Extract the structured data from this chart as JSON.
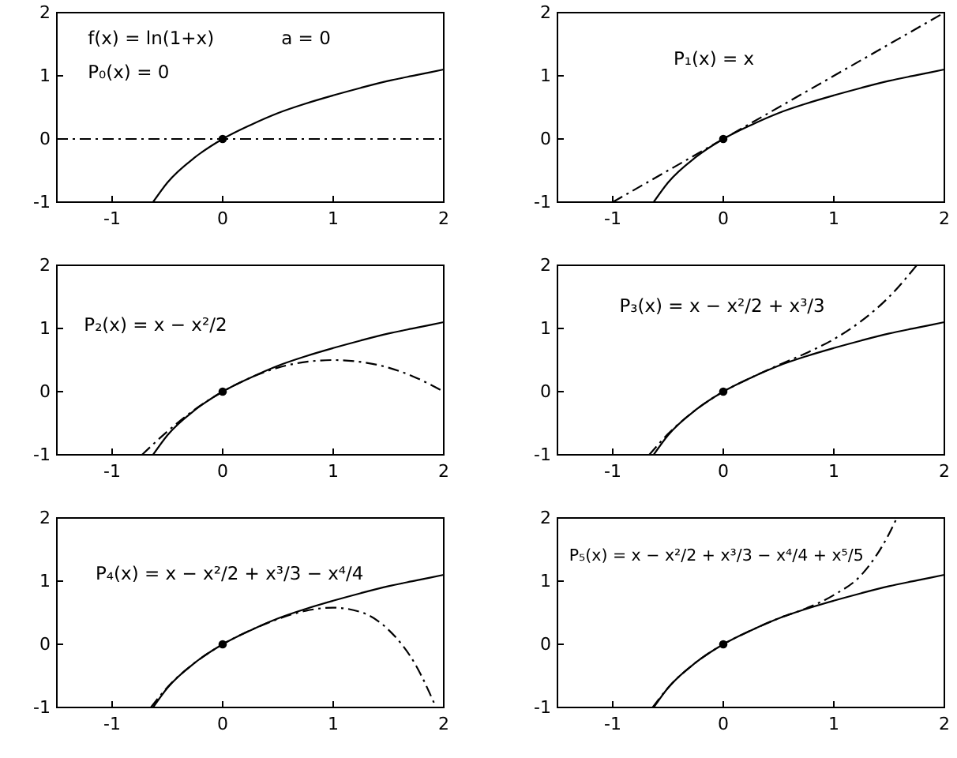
{
  "chart_data": [
    {
      "type": "line",
      "xlim": [
        -1.5,
        2
      ],
      "ylim": [
        -1,
        2
      ],
      "xticks": [
        -1,
        0,
        1,
        2
      ],
      "yticks": [
        -1,
        0,
        1,
        2
      ],
      "grid": false,
      "annotations": [
        "f(x) = ln(1+x)",
        "a = 0",
        "P₀(x) = 0"
      ],
      "series": [
        {
          "color": "#000000",
          "line_style": "solid",
          "x": [
            -0.63,
            -0.5,
            -0.25,
            0,
            0.25,
            0.5,
            0.75,
            1,
            1.25,
            1.5,
            1.75,
            2
          ],
          "values": [
            -1,
            -0.69,
            -0.29,
            0,
            0.22,
            0.41,
            0.56,
            0.69,
            0.81,
            0.92,
            1.01,
            1.1
          ]
        },
        {
          "color": "#000000",
          "line_style": "dashdot",
          "x": [
            -1.5,
            2
          ],
          "values": [
            0,
            0
          ]
        },
        {
          "type": "scatter",
          "marker": "circle",
          "color": "#000000",
          "x": [
            0
          ],
          "values": [
            0
          ]
        }
      ]
    },
    {
      "type": "line",
      "xlim": [
        -1.5,
        2
      ],
      "ylim": [
        -1,
        2
      ],
      "xticks": [
        -1,
        0,
        1,
        2
      ],
      "yticks": [
        -1,
        0,
        1,
        2
      ],
      "grid": false,
      "annotations": [
        "P₁(x) = x"
      ],
      "series": [
        {
          "color": "#000000",
          "line_style": "solid",
          "x": [
            -0.63,
            -0.5,
            -0.25,
            0,
            0.25,
            0.5,
            0.75,
            1,
            1.25,
            1.5,
            1.75,
            2
          ],
          "values": [
            -1,
            -0.69,
            -0.29,
            0,
            0.22,
            0.41,
            0.56,
            0.69,
            0.81,
            0.92,
            1.01,
            1.1
          ]
        },
        {
          "color": "#000000",
          "line_style": "dashdot",
          "x": [
            -1,
            2
          ],
          "values": [
            -1,
            2
          ]
        },
        {
          "type": "scatter",
          "marker": "circle",
          "color": "#000000",
          "x": [
            0
          ],
          "values": [
            0
          ]
        }
      ]
    },
    {
      "type": "line",
      "xlim": [
        -1.5,
        2
      ],
      "ylim": [
        -1,
        2
      ],
      "xticks": [
        -1,
        0,
        1,
        2
      ],
      "yticks": [
        -1,
        0,
        1,
        2
      ],
      "grid": false,
      "annotations": [
        "P₂(x) = x − x²/2"
      ],
      "series": [
        {
          "color": "#000000",
          "line_style": "solid",
          "x": [
            -0.63,
            -0.5,
            -0.25,
            0,
            0.25,
            0.5,
            0.75,
            1,
            1.25,
            1.5,
            1.75,
            2
          ],
          "values": [
            -1,
            -0.69,
            -0.29,
            0,
            0.22,
            0.41,
            0.56,
            0.69,
            0.81,
            0.92,
            1.01,
            1.1
          ]
        },
        {
          "color": "#000000",
          "line_style": "dashdot",
          "x": [
            -0.73,
            -0.5,
            -0.25,
            0,
            0.25,
            0.5,
            0.75,
            1,
            1.25,
            1.5,
            1.75,
            2
          ],
          "values": [
            -1,
            -0.63,
            -0.28,
            0,
            0.22,
            0.38,
            0.47,
            0.5,
            0.47,
            0.38,
            0.22,
            0
          ]
        },
        {
          "type": "scatter",
          "marker": "circle",
          "color": "#000000",
          "x": [
            0
          ],
          "values": [
            0
          ]
        }
      ]
    },
    {
      "type": "line",
      "xlim": [
        -1.5,
        2
      ],
      "ylim": [
        -1,
        2
      ],
      "xticks": [
        -1,
        0,
        1,
        2
      ],
      "yticks": [
        -1,
        0,
        1,
        2
      ],
      "grid": false,
      "annotations": [
        "P₃(x) = x − x²/2 + x³/3"
      ],
      "series": [
        {
          "color": "#000000",
          "line_style": "solid",
          "x": [
            -0.63,
            -0.5,
            -0.25,
            0,
            0.25,
            0.5,
            0.75,
            1,
            1.25,
            1.5,
            1.75,
            2
          ],
          "values": [
            -1,
            -0.69,
            -0.29,
            0,
            0.22,
            0.41,
            0.56,
            0.69,
            0.81,
            0.92,
            1.01,
            1.1
          ]
        },
        {
          "color": "#000000",
          "line_style": "dashdot",
          "x": [
            -0.67,
            -0.5,
            -0.25,
            0,
            0.25,
            0.5,
            0.75,
            1,
            1.25,
            1.5,
            1.75
          ],
          "values": [
            -1,
            -0.67,
            -0.29,
            0,
            0.22,
            0.42,
            0.61,
            0.83,
            1.12,
            1.5,
            2
          ]
        },
        {
          "type": "scatter",
          "marker": "circle",
          "color": "#000000",
          "x": [
            0
          ],
          "values": [
            0
          ]
        }
      ]
    },
    {
      "type": "line",
      "xlim": [
        -1.5,
        2
      ],
      "ylim": [
        -1,
        2
      ],
      "xticks": [
        -1,
        0,
        1,
        2
      ],
      "yticks": [
        -1,
        0,
        1,
        2
      ],
      "grid": false,
      "annotations": [
        "P₄(x) = x − x²/2 + x³/3 − x⁴/4"
      ],
      "series": [
        {
          "color": "#000000",
          "line_style": "solid",
          "x": [
            -0.63,
            -0.5,
            -0.25,
            0,
            0.25,
            0.5,
            0.75,
            1,
            1.25,
            1.5,
            1.75,
            2
          ],
          "values": [
            -1,
            -0.69,
            -0.29,
            0,
            0.22,
            0.41,
            0.56,
            0.69,
            0.81,
            0.92,
            1.01,
            1.1
          ]
        },
        {
          "color": "#000000",
          "line_style": "dashdot",
          "x": [
            -0.65,
            -0.5,
            -0.25,
            0,
            0.25,
            0.5,
            0.75,
            1,
            1.25,
            1.5,
            1.75,
            1.9,
            1.93
          ],
          "values": [
            -1,
            -0.68,
            -0.29,
            0,
            0.22,
            0.4,
            0.53,
            0.58,
            0.51,
            0.23,
            -0.34,
            -0.88,
            -1
          ]
        },
        {
          "type": "scatter",
          "marker": "circle",
          "color": "#000000",
          "x": [
            0
          ],
          "values": [
            0
          ]
        }
      ]
    },
    {
      "type": "line",
      "xlim": [
        -1.5,
        2
      ],
      "ylim": [
        -1,
        2
      ],
      "xticks": [
        -1,
        0,
        1,
        2
      ],
      "yticks": [
        -1,
        0,
        1,
        2
      ],
      "grid": false,
      "annotations": [
        "P₅(x) = x − x²/2 + x³/3 − x⁴/4 + x⁵/5"
      ],
      "series": [
        {
          "color": "#000000",
          "line_style": "solid",
          "x": [
            -0.63,
            -0.5,
            -0.25,
            0,
            0.25,
            0.5,
            0.75,
            1,
            1.25,
            1.5,
            1.75,
            2
          ],
          "values": [
            -1,
            -0.69,
            -0.29,
            0,
            0.22,
            0.41,
            0.56,
            0.69,
            0.81,
            0.92,
            1.01,
            1.1
          ]
        },
        {
          "color": "#000000",
          "line_style": "dashdot",
          "x": [
            -0.64,
            -0.5,
            -0.25,
            0,
            0.25,
            0.5,
            0.75,
            1,
            1.25,
            1.5,
            1.57
          ],
          "values": [
            -1,
            -0.69,
            -0.29,
            0,
            0.22,
            0.41,
            0.57,
            0.78,
            1.1,
            1.75,
            2
          ]
        },
        {
          "type": "scatter",
          "marker": "circle",
          "color": "#000000",
          "x": [
            0
          ],
          "values": [
            0
          ]
        }
      ]
    }
  ]
}
